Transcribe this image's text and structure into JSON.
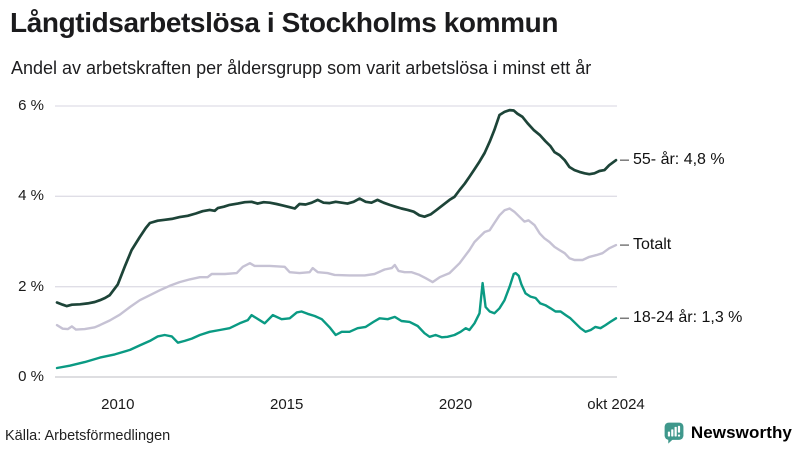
{
  "header": {
    "title": "Långtidsarbetslösa i Stockholms kommun",
    "subtitle": "Andel av arbetskraften per åldersgrupp som varit arbetslösa i minst ett år"
  },
  "footer": {
    "source": "Källa: Arbetsförmedlingen",
    "brand_name": "Newsworthy",
    "brand_icon": "newsworthy-chart-bubble-icon",
    "brand_color": "#3F988C"
  },
  "colors": {
    "grid": "#dfdee6",
    "zero_line": "#c9c9cf",
    "leader_dash": "#7a7a7a",
    "text": "#1a1a1a"
  },
  "chart_data": {
    "type": "line",
    "title": "Långtidsarbetslösa i Stockholms kommun",
    "subtitle": "Andel av arbetskraften per åldersgrupp som varit arbetslösa i minst ett år",
    "grid": "horizontal",
    "legend_position": "right-of-line-ends",
    "x_axis": {
      "xlim": [
        2008.2,
        2024.75
      ],
      "ticks": [
        2010,
        2015,
        2020,
        2024.75
      ],
      "tick_labels": [
        "2010",
        "2015",
        "2020",
        "okt 2024"
      ]
    },
    "y_axis": {
      "ylim": [
        0,
        6
      ],
      "ticks": [
        0,
        2,
        4,
        6
      ],
      "tick_labels": [
        "0 %",
        "2 %",
        "4 %",
        "6 %"
      ]
    },
    "series": [
      {
        "name": "55- år",
        "label": "55- år: 4,8 %",
        "color": "#1d4438",
        "points": [
          [
            2008.2,
            1.65
          ],
          [
            2008.37,
            1.6
          ],
          [
            2008.49,
            1.57
          ],
          [
            2008.64,
            1.6
          ],
          [
            2008.88,
            1.61
          ],
          [
            2009.11,
            1.63
          ],
          [
            2009.32,
            1.66
          ],
          [
            2009.47,
            1.7
          ],
          [
            2009.62,
            1.75
          ],
          [
            2009.76,
            1.81
          ],
          [
            2010.0,
            2.05
          ],
          [
            2010.21,
            2.45
          ],
          [
            2010.41,
            2.81
          ],
          [
            2010.65,
            3.1
          ],
          [
            2010.83,
            3.3
          ],
          [
            2010.95,
            3.41
          ],
          [
            2011.18,
            3.46
          ],
          [
            2011.39,
            3.48
          ],
          [
            2011.6,
            3.5
          ],
          [
            2011.83,
            3.54
          ],
          [
            2012.07,
            3.57
          ],
          [
            2012.31,
            3.62
          ],
          [
            2012.51,
            3.67
          ],
          [
            2012.72,
            3.7
          ],
          [
            2012.87,
            3.68
          ],
          [
            2012.96,
            3.74
          ],
          [
            2013.14,
            3.77
          ],
          [
            2013.31,
            3.81
          ],
          [
            2013.55,
            3.84
          ],
          [
            2013.76,
            3.87
          ],
          [
            2013.96,
            3.88
          ],
          [
            2014.14,
            3.84
          ],
          [
            2014.32,
            3.87
          ],
          [
            2014.5,
            3.86
          ],
          [
            2014.7,
            3.83
          ],
          [
            2014.88,
            3.8
          ],
          [
            2015.09,
            3.76
          ],
          [
            2015.24,
            3.73
          ],
          [
            2015.38,
            3.83
          ],
          [
            2015.56,
            3.82
          ],
          [
            2015.74,
            3.86
          ],
          [
            2015.92,
            3.92
          ],
          [
            2016.09,
            3.86
          ],
          [
            2016.27,
            3.85
          ],
          [
            2016.45,
            3.88
          ],
          [
            2016.63,
            3.86
          ],
          [
            2016.8,
            3.84
          ],
          [
            2016.98,
            3.88
          ],
          [
            2017.16,
            3.95
          ],
          [
            2017.34,
            3.88
          ],
          [
            2017.51,
            3.86
          ],
          [
            2017.69,
            3.92
          ],
          [
            2017.87,
            3.86
          ],
          [
            2018.05,
            3.81
          ],
          [
            2018.22,
            3.77
          ],
          [
            2018.4,
            3.73
          ],
          [
            2018.58,
            3.7
          ],
          [
            2018.76,
            3.66
          ],
          [
            2018.93,
            3.58
          ],
          [
            2019.08,
            3.55
          ],
          [
            2019.26,
            3.6
          ],
          [
            2019.44,
            3.7
          ],
          [
            2019.61,
            3.8
          ],
          [
            2019.82,
            3.92
          ],
          [
            2019.97,
            3.99
          ],
          [
            2020.12,
            4.14
          ],
          [
            2020.27,
            4.28
          ],
          [
            2020.41,
            4.43
          ],
          [
            2020.56,
            4.6
          ],
          [
            2020.71,
            4.77
          ],
          [
            2020.86,
            4.96
          ],
          [
            2021.01,
            5.21
          ],
          [
            2021.15,
            5.47
          ],
          [
            2021.3,
            5.8
          ],
          [
            2021.45,
            5.87
          ],
          [
            2021.6,
            5.91
          ],
          [
            2021.72,
            5.9
          ],
          [
            2021.83,
            5.83
          ],
          [
            2021.98,
            5.76
          ],
          [
            2022.13,
            5.62
          ],
          [
            2022.31,
            5.47
          ],
          [
            2022.49,
            5.36
          ],
          [
            2022.66,
            5.22
          ],
          [
            2022.81,
            5.11
          ],
          [
            2022.93,
            4.98
          ],
          [
            2023.08,
            4.91
          ],
          [
            2023.23,
            4.8
          ],
          [
            2023.37,
            4.65
          ],
          [
            2023.52,
            4.58
          ],
          [
            2023.67,
            4.54
          ],
          [
            2023.82,
            4.51
          ],
          [
            2023.96,
            4.49
          ],
          [
            2024.11,
            4.51
          ],
          [
            2024.26,
            4.56
          ],
          [
            2024.41,
            4.58
          ],
          [
            2024.55,
            4.69
          ],
          [
            2024.75,
            4.8
          ]
        ]
      },
      {
        "name": "Totalt",
        "label": "Totalt",
        "color": "#c6c2d4",
        "points": [
          [
            2008.2,
            1.15
          ],
          [
            2008.37,
            1.07
          ],
          [
            2008.52,
            1.06
          ],
          [
            2008.64,
            1.12
          ],
          [
            2008.76,
            1.05
          ],
          [
            2009.02,
            1.06
          ],
          [
            2009.32,
            1.1
          ],
          [
            2009.47,
            1.15
          ],
          [
            2009.76,
            1.25
          ],
          [
            2010.06,
            1.38
          ],
          [
            2010.36,
            1.55
          ],
          [
            2010.65,
            1.7
          ],
          [
            2010.95,
            1.81
          ],
          [
            2011.24,
            1.92
          ],
          [
            2011.54,
            2.02
          ],
          [
            2011.83,
            2.1
          ],
          [
            2012.13,
            2.16
          ],
          [
            2012.43,
            2.21
          ],
          [
            2012.66,
            2.21
          ],
          [
            2012.78,
            2.28
          ],
          [
            2013.17,
            2.28
          ],
          [
            2013.52,
            2.3
          ],
          [
            2013.7,
            2.44
          ],
          [
            2013.91,
            2.52
          ],
          [
            2014.05,
            2.46
          ],
          [
            2014.5,
            2.46
          ],
          [
            2014.94,
            2.44
          ],
          [
            2015.09,
            2.32
          ],
          [
            2015.38,
            2.3
          ],
          [
            2015.68,
            2.32
          ],
          [
            2015.77,
            2.41
          ],
          [
            2015.92,
            2.32
          ],
          [
            2016.21,
            2.3
          ],
          [
            2016.42,
            2.26
          ],
          [
            2016.86,
            2.25
          ],
          [
            2017.31,
            2.25
          ],
          [
            2017.6,
            2.28
          ],
          [
            2017.9,
            2.38
          ],
          [
            2018.11,
            2.41
          ],
          [
            2018.2,
            2.48
          ],
          [
            2018.31,
            2.35
          ],
          [
            2018.49,
            2.32
          ],
          [
            2018.7,
            2.32
          ],
          [
            2018.93,
            2.26
          ],
          [
            2019.11,
            2.19
          ],
          [
            2019.32,
            2.1
          ],
          [
            2019.53,
            2.21
          ],
          [
            2019.82,
            2.3
          ],
          [
            2020.12,
            2.52
          ],
          [
            2020.41,
            2.81
          ],
          [
            2020.56,
            2.99
          ],
          [
            2020.71,
            3.1
          ],
          [
            2020.86,
            3.21
          ],
          [
            2021.01,
            3.25
          ],
          [
            2021.15,
            3.41
          ],
          [
            2021.3,
            3.58
          ],
          [
            2021.45,
            3.69
          ],
          [
            2021.6,
            3.73
          ],
          [
            2021.74,
            3.66
          ],
          [
            2021.89,
            3.55
          ],
          [
            2022.04,
            3.44
          ],
          [
            2022.16,
            3.47
          ],
          [
            2022.34,
            3.36
          ],
          [
            2022.49,
            3.18
          ],
          [
            2022.63,
            3.07
          ],
          [
            2022.78,
            2.99
          ],
          [
            2022.93,
            2.88
          ],
          [
            2023.08,
            2.81
          ],
          [
            2023.23,
            2.74
          ],
          [
            2023.37,
            2.63
          ],
          [
            2023.52,
            2.59
          ],
          [
            2023.76,
            2.59
          ],
          [
            2023.96,
            2.66
          ],
          [
            2024.17,
            2.7
          ],
          [
            2024.35,
            2.74
          ],
          [
            2024.55,
            2.85
          ],
          [
            2024.75,
            2.92
          ]
        ]
      },
      {
        "name": "18-24 år",
        "label": "18-24 år: 1,3 %",
        "color": "#0a9a83",
        "points": [
          [
            2008.2,
            0.2
          ],
          [
            2008.58,
            0.25
          ],
          [
            2009.02,
            0.33
          ],
          [
            2009.47,
            0.43
          ],
          [
            2009.91,
            0.5
          ],
          [
            2010.36,
            0.6
          ],
          [
            2010.65,
            0.7
          ],
          [
            2010.95,
            0.8
          ],
          [
            2011.18,
            0.9
          ],
          [
            2011.39,
            0.93
          ],
          [
            2011.6,
            0.9
          ],
          [
            2011.78,
            0.76
          ],
          [
            2011.98,
            0.8
          ],
          [
            2012.19,
            0.85
          ],
          [
            2012.43,
            0.93
          ],
          [
            2012.72,
            1.0
          ],
          [
            2013.02,
            1.04
          ],
          [
            2013.31,
            1.08
          ],
          [
            2013.61,
            1.19
          ],
          [
            2013.85,
            1.26
          ],
          [
            2013.96,
            1.37
          ],
          [
            2014.11,
            1.3
          ],
          [
            2014.35,
            1.19
          ],
          [
            2014.59,
            1.37
          ],
          [
            2014.85,
            1.28
          ],
          [
            2015.09,
            1.3
          ],
          [
            2015.3,
            1.43
          ],
          [
            2015.44,
            1.45
          ],
          [
            2015.62,
            1.4
          ],
          [
            2015.83,
            1.35
          ],
          [
            2016.04,
            1.28
          ],
          [
            2016.27,
            1.1
          ],
          [
            2016.45,
            0.93
          ],
          [
            2016.63,
            1.0
          ],
          [
            2016.86,
            1.0
          ],
          [
            2017.1,
            1.08
          ],
          [
            2017.34,
            1.11
          ],
          [
            2017.57,
            1.22
          ],
          [
            2017.75,
            1.3
          ],
          [
            2017.99,
            1.28
          ],
          [
            2018.2,
            1.33
          ],
          [
            2018.4,
            1.24
          ],
          [
            2018.64,
            1.22
          ],
          [
            2018.88,
            1.13
          ],
          [
            2019.08,
            0.97
          ],
          [
            2019.23,
            0.89
          ],
          [
            2019.41,
            0.93
          ],
          [
            2019.59,
            0.88
          ],
          [
            2019.76,
            0.89
          ],
          [
            2019.97,
            0.93
          ],
          [
            2020.15,
            1.0
          ],
          [
            2020.3,
            1.08
          ],
          [
            2020.41,
            1.04
          ],
          [
            2020.56,
            1.19
          ],
          [
            2020.71,
            1.41
          ],
          [
            2020.8,
            2.08
          ],
          [
            2020.89,
            1.55
          ],
          [
            2021.01,
            1.45
          ],
          [
            2021.15,
            1.41
          ],
          [
            2021.3,
            1.52
          ],
          [
            2021.45,
            1.7
          ],
          [
            2021.6,
            2.0
          ],
          [
            2021.72,
            2.28
          ],
          [
            2021.78,
            2.3
          ],
          [
            2021.87,
            2.24
          ],
          [
            2021.95,
            2.05
          ],
          [
            2022.07,
            1.85
          ],
          [
            2022.22,
            1.78
          ],
          [
            2022.37,
            1.75
          ],
          [
            2022.51,
            1.63
          ],
          [
            2022.66,
            1.59
          ],
          [
            2022.81,
            1.52
          ],
          [
            2022.96,
            1.45
          ],
          [
            2023.11,
            1.45
          ],
          [
            2023.26,
            1.37
          ],
          [
            2023.4,
            1.3
          ],
          [
            2023.55,
            1.19
          ],
          [
            2023.7,
            1.08
          ],
          [
            2023.85,
            1.0
          ],
          [
            2024.0,
            1.04
          ],
          [
            2024.14,
            1.11
          ],
          [
            2024.29,
            1.08
          ],
          [
            2024.44,
            1.15
          ],
          [
            2024.58,
            1.22
          ],
          [
            2024.75,
            1.3
          ]
        ]
      }
    ]
  }
}
